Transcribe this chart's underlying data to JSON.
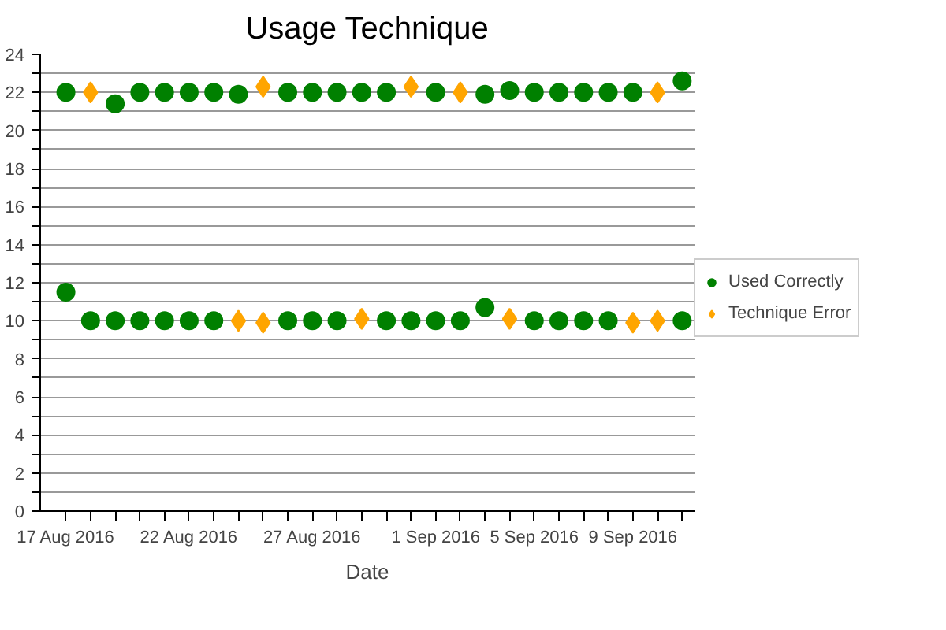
{
  "chart_data": {
    "type": "scatter",
    "title": "Usage Technique",
    "xlabel": "Date",
    "xlim": [
      "2016-08-15T23:00",
      "2016-09-11T12:00"
    ],
    "xticks": [
      {
        "value": "2016-08-17",
        "label": "17 Aug 2016"
      },
      {
        "value": "2016-08-18",
        "label": null
      },
      {
        "value": "2016-08-19",
        "label": null
      },
      {
        "value": "2016-08-20",
        "label": null
      },
      {
        "value": "2016-08-21",
        "label": null
      },
      {
        "value": "2016-08-22",
        "label": "22 Aug 2016"
      },
      {
        "value": "2016-08-23",
        "label": null
      },
      {
        "value": "2016-08-24",
        "label": null
      },
      {
        "value": "2016-08-25",
        "label": null
      },
      {
        "value": "2016-08-26",
        "label": null
      },
      {
        "value": "2016-08-27",
        "label": "27 Aug 2016"
      },
      {
        "value": "2016-08-28",
        "label": null
      },
      {
        "value": "2016-08-29",
        "label": null
      },
      {
        "value": "2016-08-30",
        "label": null
      },
      {
        "value": "2016-08-31",
        "label": null
      },
      {
        "value": "2016-09-01",
        "label": "1 Sep 2016"
      },
      {
        "value": "2016-09-02",
        "label": null
      },
      {
        "value": "2016-09-03",
        "label": null
      },
      {
        "value": "2016-09-04",
        "label": null
      },
      {
        "value": "2016-09-05",
        "label": "5 Sep 2016"
      },
      {
        "value": "2016-09-06",
        "label": null
      },
      {
        "value": "2016-09-07",
        "label": null
      },
      {
        "value": "2016-09-08",
        "label": null
      },
      {
        "value": "2016-09-09",
        "label": "9 Sep 2016"
      },
      {
        "value": "2016-09-10",
        "label": null
      },
      {
        "value": "2016-09-11",
        "label": null
      }
    ],
    "ylim": [
      0,
      24
    ],
    "yticks": [
      0,
      {
        "value": 1,
        "label": null
      },
      2,
      {
        "value": 3,
        "label": null
      },
      4,
      {
        "value": 5,
        "label": null
      },
      6,
      {
        "value": 7,
        "label": null
      },
      8,
      {
        "value": 9,
        "label": null
      },
      10,
      {
        "value": 11,
        "label": null
      },
      12,
      {
        "value": 13,
        "label": null
      },
      14,
      {
        "value": 15,
        "label": null
      },
      16,
      {
        "value": 17,
        "label": null
      },
      18,
      {
        "value": 19,
        "label": null
      },
      20,
      {
        "value": 21,
        "label": null
      },
      22,
      {
        "value": 23,
        "label": null
      },
      24
    ],
    "grid": "y",
    "legend": "right",
    "series": [
      {
        "name": "Used Correctly",
        "color": "#008000",
        "marker": "circle",
        "x": [
          "2016-08-17",
          "2016-08-17",
          "2016-08-18",
          "2016-08-19",
          "2016-08-19",
          "2016-08-20",
          "2016-08-20",
          "2016-08-21",
          "2016-08-21",
          "2016-08-22",
          "2016-08-22",
          "2016-08-23",
          "2016-08-23",
          "2016-08-24",
          "2016-08-26",
          "2016-08-26",
          "2016-08-27",
          "2016-08-27",
          "2016-08-28",
          "2016-08-28",
          "2016-08-29",
          "2016-08-30",
          "2016-08-30",
          "2016-08-31",
          "2016-09-01",
          "2016-09-01",
          "2016-09-02",
          "2016-09-03",
          "2016-09-03",
          "2016-09-04",
          "2016-09-05",
          "2016-09-05",
          "2016-09-06",
          "2016-09-06",
          "2016-09-07",
          "2016-09-07",
          "2016-09-08",
          "2016-09-08",
          "2016-09-09",
          "2016-09-11",
          "2016-09-11"
        ],
        "values": [
          22,
          11.5,
          10,
          21.4,
          10,
          22,
          10,
          22,
          10,
          22,
          10,
          22,
          10,
          21.9,
          22,
          10,
          22,
          10,
          22,
          10,
          22,
          22,
          10,
          10,
          22,
          10,
          10,
          21.9,
          10.7,
          22.1,
          22,
          10,
          22,
          10,
          22,
          10,
          22,
          10,
          22,
          22.6,
          10
        ]
      },
      {
        "name": "Technique Error",
        "color": "#ffa500",
        "marker": "diamond",
        "x": [
          "2016-08-18",
          "2016-08-24",
          "2016-08-25",
          "2016-08-25",
          "2016-08-29",
          "2016-08-31",
          "2016-09-02",
          "2016-09-04",
          "2016-09-09",
          "2016-09-10",
          "2016-09-10"
        ],
        "values": [
          22,
          10,
          22.3,
          9.9,
          10.1,
          22.3,
          22,
          10.1,
          9.9,
          22,
          10
        ]
      }
    ]
  }
}
